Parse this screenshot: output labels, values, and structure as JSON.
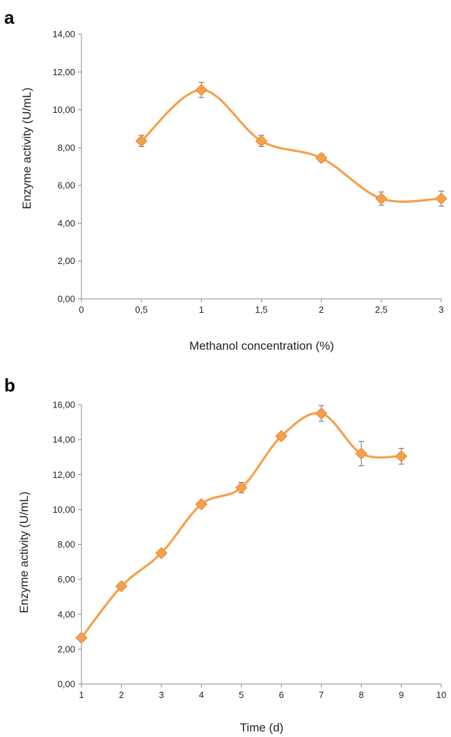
{
  "chart_data": [
    {
      "panel_label": "a",
      "type": "line",
      "xlabel": "Methanol concentration (%)",
      "ylabel": "Enzyme activity (U/mL)",
      "xlim": [
        0,
        3
      ],
      "ylim": [
        0,
        14
      ],
      "x_ticks": [
        "0",
        "0,5",
        "1",
        "1,5",
        "2",
        "2,5",
        "3"
      ],
      "y_ticks": [
        "0,00",
        "2,00",
        "4,00",
        "6,00",
        "8,00",
        "10,00",
        "12,00",
        "14,00"
      ],
      "grid": false,
      "legend": "none",
      "color": "#F5A04A",
      "marker": "diamond",
      "smooth": true,
      "series": [
        {
          "x": [
            0.5,
            1,
            1.5,
            2,
            2.5,
            3
          ],
          "y": [
            8.35,
            11.05,
            8.35,
            7.45,
            5.3,
            5.3
          ],
          "error": [
            0.3,
            0.4,
            0.3,
            0.2,
            0.35,
            0.4
          ]
        }
      ]
    },
    {
      "panel_label": "b",
      "type": "line",
      "xlabel": "Time (d)",
      "ylabel": "Enzyme activity (U/mL)",
      "xlim": [
        1,
        10
      ],
      "ylim": [
        0,
        16
      ],
      "x_ticks": [
        "1",
        "2",
        "3",
        "4",
        "5",
        "6",
        "7",
        "8",
        "9",
        "10"
      ],
      "y_ticks": [
        "0,00",
        "2,00",
        "4,00",
        "6,00",
        "8,00",
        "10,00",
        "12,00",
        "14,00",
        "16,00"
      ],
      "grid": false,
      "legend": "none",
      "color": "#F5A04A",
      "marker": "diamond",
      "smooth": true,
      "series": [
        {
          "x": [
            1,
            2,
            3,
            4,
            5,
            6,
            7,
            8,
            9
          ],
          "y": [
            2.65,
            5.6,
            7.5,
            10.3,
            11.25,
            14.2,
            15.5,
            13.2,
            13.05
          ],
          "error": [
            0.15,
            0.15,
            0.15,
            0.15,
            0.3,
            0.15,
            0.45,
            0.7,
            0.45
          ]
        }
      ]
    }
  ]
}
